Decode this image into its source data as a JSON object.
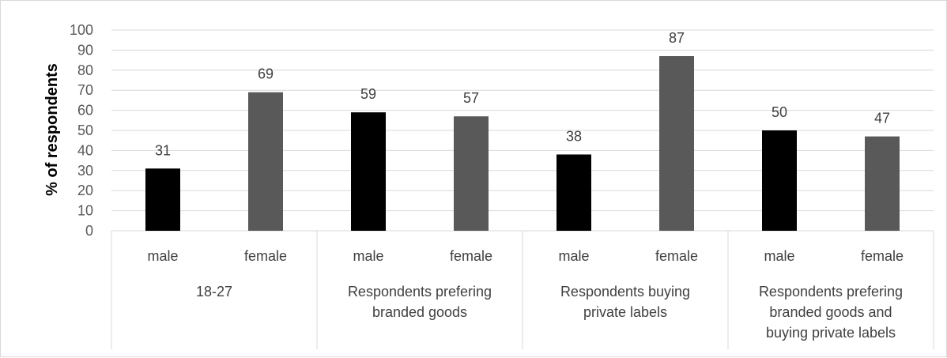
{
  "chart_data": {
    "type": "bar",
    "ylabel": "% of respondents",
    "ylim": [
      0,
      100
    ],
    "ytick_step": 10,
    "grid": true,
    "groups": [
      {
        "label_lines": [
          "18-27"
        ],
        "categories": [
          "male",
          "female"
        ],
        "values": [
          31,
          69
        ]
      },
      {
        "label_lines": [
          "Respondents prefering",
          "branded goods"
        ],
        "categories": [
          "male",
          "female"
        ],
        "values": [
          59,
          57
        ]
      },
      {
        "label_lines": [
          "Respondents buying",
          "private labels"
        ],
        "categories": [
          "male",
          "female"
        ],
        "values": [
          38,
          87
        ]
      },
      {
        "label_lines": [
          "Respondents prefering",
          "branded goods and",
          "buying private labels"
        ],
        "categories": [
          "male",
          "female"
        ],
        "values": [
          50,
          47
        ]
      }
    ],
    "colors": {
      "male": "#000000",
      "female": "#595959",
      "grid": "#d9d9d9"
    }
  }
}
